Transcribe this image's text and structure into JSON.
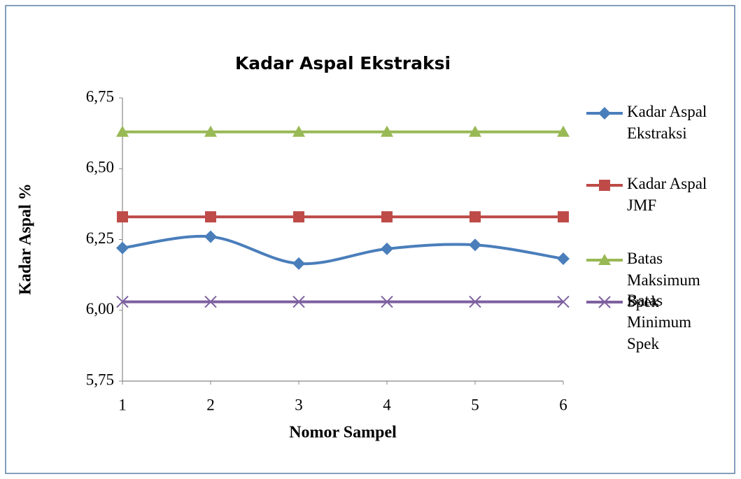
{
  "chart_data": {
    "type": "line",
    "title": "Kadar Aspal Ekstraksi",
    "x_label": "Nomor Sampel",
    "y_label": "Kadar Aspal %",
    "x": [
      1,
      2,
      3,
      4,
      5,
      6
    ],
    "xlim": [
      1,
      6
    ],
    "xticks": [
      1,
      2,
      3,
      4,
      5,
      6
    ],
    "ylim": [
      5.75,
      6.75
    ],
    "yticks": [
      {
        "value": 5.75,
        "label": "5,75"
      },
      {
        "value": 6.0,
        "label": "6,00"
      },
      {
        "value": 6.25,
        "label": "6,25"
      },
      {
        "value": 6.5,
        "label": "6,50"
      },
      {
        "value": 6.75,
        "label": "6,75"
      }
    ],
    "grid": false,
    "legend": "right",
    "series": [
      {
        "name": "Kadar Aspal Ekstraksi",
        "color": "#4a7ebb",
        "marker": "diamond",
        "smooth": true,
        "values": [
          6.22,
          6.26,
          6.165,
          6.217,
          6.231,
          6.182
        ]
      },
      {
        "name": "Kadar Aspal JMF",
        "color": "#be4b48",
        "marker": "square",
        "smooth": false,
        "values": [
          6.33,
          6.33,
          6.33,
          6.33,
          6.33,
          6.33
        ]
      },
      {
        "name": "Batas Maksimum Spek",
        "color": "#98b954",
        "marker": "triangle",
        "smooth": false,
        "values": [
          6.63,
          6.63,
          6.63,
          6.63,
          6.63,
          6.63
        ]
      },
      {
        "name": "Batas Minimum Spek",
        "color": "#7d60a0",
        "marker": "x",
        "smooth": false,
        "values": [
          6.03,
          6.03,
          6.03,
          6.03,
          6.03,
          6.03
        ]
      }
    ]
  }
}
